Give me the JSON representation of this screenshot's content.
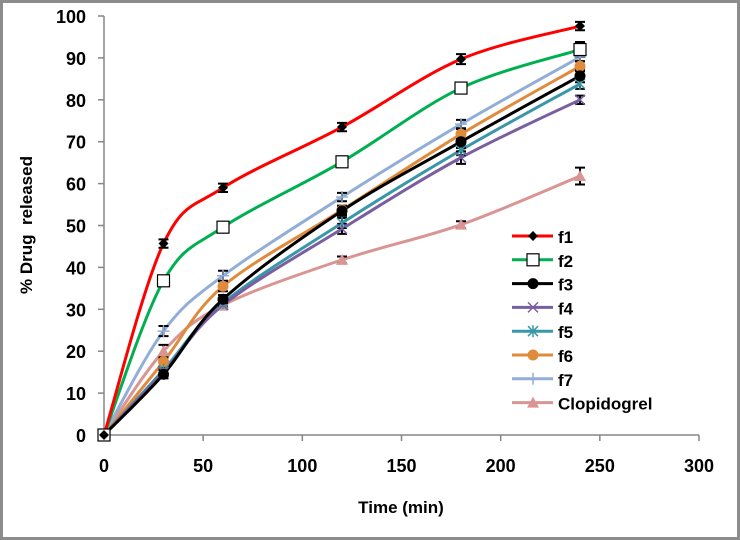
{
  "chart_data": {
    "type": "line",
    "title": "",
    "xlabel": "Time (min)",
    "ylabel": "% Drug  released",
    "xlim": [
      0,
      300
    ],
    "ylim": [
      0,
      100
    ],
    "xticks": [
      0,
      50,
      100,
      150,
      200,
      250,
      300
    ],
    "yticks": [
      0,
      10,
      20,
      30,
      40,
      50,
      60,
      70,
      80,
      90,
      100
    ],
    "grid": false,
    "legend_position": "right",
    "x": [
      0,
      30,
      60,
      120,
      180,
      240
    ],
    "series": [
      {
        "name": "f1",
        "color": "#ff0000",
        "marker": "diamond",
        "smooth": true,
        "values": [
          0,
          45.7,
          59.0,
          73.5,
          89.7,
          97.6
        ],
        "errors": [
          0,
          1.0,
          1.0,
          1.0,
          1.2,
          1.0
        ]
      },
      {
        "name": "f2",
        "color": "#00b050",
        "marker": "square-open",
        "smooth": true,
        "values": [
          0,
          36.8,
          49.6,
          65.2,
          82.8,
          92.0
        ],
        "errors": [
          0,
          0.5,
          0.8,
          0.8,
          0.8,
          1.8
        ]
      },
      {
        "name": "f3",
        "color": "#000000",
        "marker": "circle",
        "smooth": true,
        "values": [
          0,
          14.5,
          32.4,
          53.5,
          70.0,
          85.7
        ],
        "errors": [
          0,
          1.0,
          1.0,
          1.2,
          1.5,
          1.5
        ]
      },
      {
        "name": "f4",
        "color": "#7a5fa0",
        "marker": "x",
        "smooth": true,
        "values": [
          0,
          15.0,
          31.0,
          49.2,
          66.2,
          80.0
        ],
        "errors": [
          0,
          0.8,
          0.8,
          1.2,
          1.5,
          1.0
        ]
      },
      {
        "name": "f5",
        "color": "#3a97a8",
        "marker": "asterisk",
        "smooth": true,
        "values": [
          0,
          15.5,
          31.5,
          50.6,
          68.0,
          83.8
        ],
        "errors": [
          0,
          0.8,
          0.8,
          1.2,
          1.2,
          1.2
        ]
      },
      {
        "name": "f6",
        "color": "#e08a3c",
        "marker": "circle",
        "smooth": true,
        "values": [
          0,
          17.5,
          35.5,
          53.7,
          71.8,
          88.0
        ],
        "errors": [
          0,
          1.5,
          1.2,
          1.0,
          1.2,
          1.2
        ]
      },
      {
        "name": "f7",
        "color": "#93aed6",
        "marker": "plus",
        "smooth": true,
        "values": [
          0,
          24.8,
          38.0,
          56.8,
          74.2,
          90.2
        ],
        "errors": [
          0,
          1.2,
          1.2,
          1.0,
          1.0,
          1.0
        ]
      },
      {
        "name": "Clopidogrel",
        "color": "#d99594",
        "marker": "triangle",
        "smooth": true,
        "values": [
          0,
          20.0,
          31.0,
          41.8,
          50.2,
          61.8
        ],
        "errors": [
          0,
          1.5,
          1.0,
          0.8,
          0.8,
          2.0
        ]
      }
    ]
  }
}
